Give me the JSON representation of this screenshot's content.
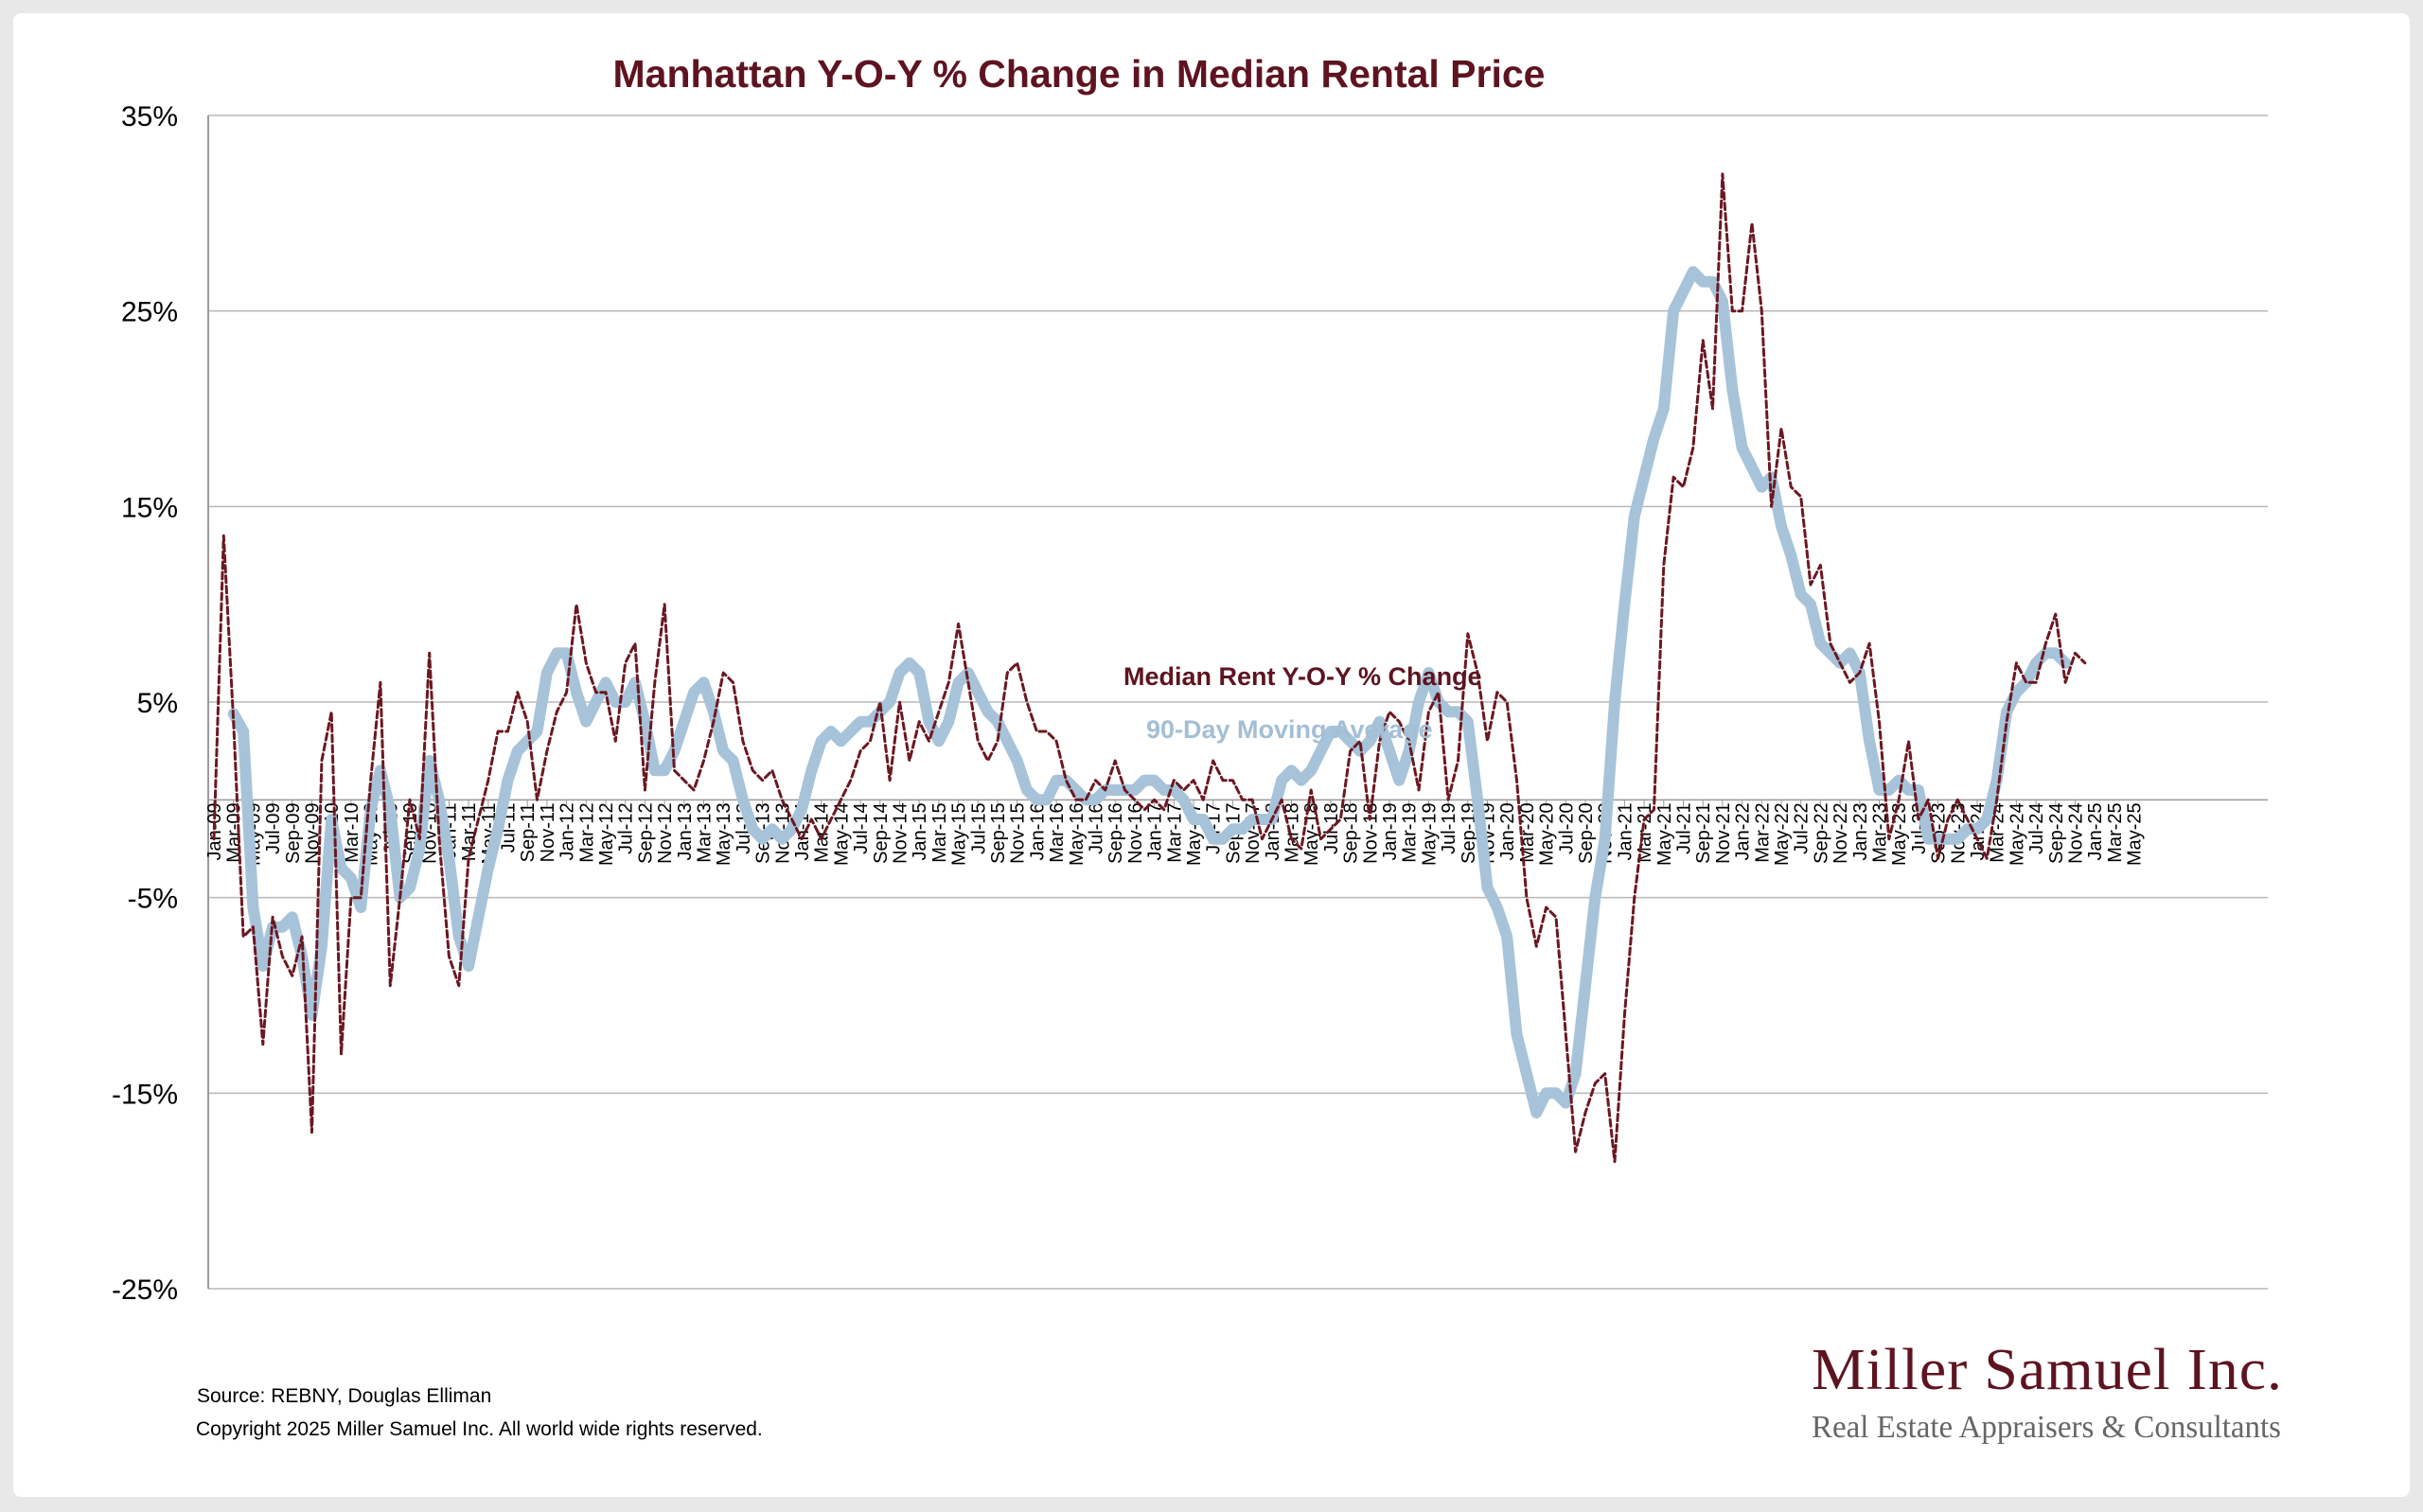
{
  "chart_data": {
    "type": "line",
    "title": "Manhattan Y-O-Y % Change in Median Rental Price",
    "xlabel": "",
    "ylabel": "",
    "ylim": [
      -25,
      35
    ],
    "y_ticks": [
      "35%",
      "25%",
      "15%",
      "5%",
      "-5%",
      "-15%",
      "-25%"
    ],
    "y_tick_values": [
      35,
      25,
      15,
      5,
      -5,
      -15,
      -25
    ],
    "start_month": "2009-01",
    "x_tick_step_months": 2,
    "x_tick_labels": [
      "Jan-09",
      "Mar-09",
      "May-09",
      "Jul-09",
      "Sep-09",
      "Nov-09",
      "Jan-10",
      "Mar-10",
      "May-10",
      "Jul-10",
      "Sep-10",
      "Nov-10",
      "Jan-11",
      "Mar-11",
      "May-11",
      "Jul-11",
      "Sep-11",
      "Nov-11",
      "Jan-12",
      "Mar-12",
      "May-12",
      "Jul-12",
      "Sep-12",
      "Nov-12",
      "Jan-13",
      "Mar-13",
      "May-13",
      "Jul-13",
      "Sep-13",
      "Nov-13",
      "Jan-14",
      "Mar-14",
      "May-14",
      "Jul-14",
      "Sep-14",
      "Nov-14",
      "Jan-15",
      "Mar-15",
      "May-15",
      "Jul-15",
      "Sep-15",
      "Nov-15",
      "Jan-16",
      "Mar-16",
      "May-16",
      "Jul-16",
      "Sep-16",
      "Nov-16",
      "Jan-17",
      "Mar-17",
      "May-17",
      "Jul-17",
      "Sep-17",
      "Nov-17",
      "Jan-18",
      "Mar-18",
      "May-18",
      "Jul-18",
      "Sep-18",
      "Nov-18",
      "Jan-19",
      "Mar-19",
      "May-19",
      "Jul-19",
      "Sep-19",
      "Nov-19",
      "Jan-20",
      "Mar-20",
      "May-20",
      "Jul-20",
      "Sep-20",
      "Nov-20",
      "Jan-21",
      "Mar-21",
      "May-21",
      "Jul-21",
      "Sep-21",
      "Nov-21",
      "Jan-22",
      "Mar-22",
      "May-22",
      "Jul-22",
      "Sep-22",
      "Nov-22",
      "Jan-23",
      "Mar-23",
      "May-23",
      "Jul-23",
      "Sep-23",
      "Nov-23",
      "Jan-24",
      "Mar-24",
      "May-24",
      "Jul-24",
      "Sep-24",
      "Nov-24",
      "Jan-25",
      "Mar-25",
      "May-25"
    ],
    "grid": true,
    "series": [
      {
        "name": "Median Rent Y-O-Y % Change",
        "color": "#6b1822",
        "style": "dashed",
        "values": [
          -2,
          13.5,
          4,
          -7,
          -6.5,
          -12.5,
          -6,
          -8,
          -9,
          -7,
          -17,
          2,
          4.5,
          -13,
          -5,
          -5,
          1,
          6,
          -9.5,
          -5,
          0,
          -2,
          7.5,
          -2,
          -8,
          -9.5,
          -3,
          -1,
          1,
          3.5,
          3.5,
          5.5,
          4,
          0,
          2.5,
          4.5,
          5.5,
          10,
          7,
          5.5,
          5.5,
          3,
          7,
          8,
          0.5,
          6,
          10,
          1.5,
          1,
          0.5,
          2,
          4,
          6.5,
          6,
          3,
          1.5,
          1,
          1.5,
          0,
          -1,
          -2,
          -1,
          -2,
          -1,
          0,
          1,
          2.5,
          3,
          5,
          1,
          5,
          2,
          4,
          3,
          4.5,
          6,
          9,
          6,
          3,
          2,
          3,
          6.5,
          7,
          5,
          3.5,
          3.5,
          3,
          1,
          0,
          0,
          1,
          0.5,
          2,
          0.5,
          0,
          -0.5,
          0,
          -0.5,
          1,
          0.5,
          1,
          0,
          2,
          1,
          1,
          0,
          0,
          -2,
          -1,
          0,
          -2,
          -2.5,
          0.5,
          -2,
          -1.5,
          -1,
          2.5,
          3,
          -1,
          3,
          4.5,
          4,
          3,
          0.5,
          4.5,
          5.5,
          0,
          2,
          8.5,
          6.5,
          3,
          5.5,
          5,
          1,
          -5,
          -7.5,
          -5.5,
          -6,
          -12,
          -18,
          -16,
          -14.5,
          -14,
          -18.5,
          -11,
          -5,
          -1,
          -0.5,
          12,
          16.5,
          16,
          18,
          23.5,
          20,
          32,
          25,
          25,
          29.5,
          25,
          15,
          19,
          16,
          15.5,
          11,
          12,
          8,
          7,
          6,
          6.5,
          8,
          4,
          -2,
          0,
          3,
          -1,
          0,
          -3,
          -1,
          0,
          -1,
          -2,
          -3,
          0,
          4,
          7,
          6,
          6,
          8,
          9.5,
          6,
          7.5,
          7
        ]
      },
      {
        "name": "90-Day Moving Average",
        "color": "#a7c3da",
        "style": "solid",
        "values": [
          null,
          null,
          4.4,
          3.5,
          -5.5,
          -8.5,
          -6.5,
          -6.5,
          -6,
          -8,
          -11,
          -7.5,
          -1,
          -3.5,
          -4,
          -5.5,
          -0.5,
          1.5,
          -0.5,
          -5,
          -4.5,
          -2.5,
          2,
          0,
          -3,
          -7,
          -8.5,
          -6,
          -3.5,
          -1.5,
          1,
          2.5,
          3,
          3.5,
          6.5,
          7.5,
          7.5,
          5.5,
          4,
          5,
          6,
          5,
          5,
          6,
          4,
          1.5,
          1.5,
          2.5,
          4,
          5.5,
          6,
          4.5,
          2.5,
          2,
          0,
          -1.5,
          -2,
          -1.5,
          -2,
          -1.5,
          -0.5,
          1.5,
          3,
          3.5,
          3,
          3.5,
          4,
          4,
          4.5,
          5,
          6.5,
          7,
          6.5,
          4,
          3,
          4,
          6,
          6.5,
          5.5,
          4.5,
          4,
          3,
          2,
          0.5,
          0,
          0,
          1,
          1,
          0.5,
          0,
          0,
          0.5,
          0.5,
          0.5,
          0.5,
          1,
          1,
          0.5,
          0.5,
          0,
          -1,
          -1,
          -2,
          -2,
          -1.5,
          -1.5,
          -1,
          -1,
          -1,
          1,
          1.5,
          1,
          1.5,
          2.5,
          3.5,
          3.5,
          3,
          2.5,
          3,
          4,
          2.5,
          1,
          2.5,
          5,
          6.5,
          5,
          4.5,
          4.5,
          4,
          0,
          -4.5,
          -5.5,
          -7,
          -12,
          -14,
          -16,
          -15,
          -15,
          -15.5,
          -14,
          -9.5,
          -5,
          -2,
          5,
          10,
          14.5,
          16.5,
          18.5,
          20,
          25,
          26,
          27,
          26.5,
          26.5,
          25.5,
          21,
          18,
          17,
          16,
          16.5,
          14,
          12.5,
          10.5,
          10,
          8,
          7.5,
          7,
          7.5,
          6.5,
          3,
          0.5,
          0.5,
          1,
          0.5,
          0.5,
          -2,
          -2,
          -2,
          -2,
          -1.5,
          -1.5,
          -1,
          1,
          4.5,
          5.5,
          6,
          7,
          7.5,
          7.5,
          7
        ]
      }
    ],
    "annotations": [
      "Median Rent Y-O-Y % Change",
      "90-Day Moving Average"
    ]
  },
  "footer": {
    "source": "Source: REBNY, Douglas Elliman",
    "copyright": "Copyright 2025 Miller Samuel Inc.  All world wide rights reserved."
  },
  "logo": {
    "name": "Miller Samuel Inc.",
    "tagline": "Real Estate Appraisers & Consultants"
  }
}
